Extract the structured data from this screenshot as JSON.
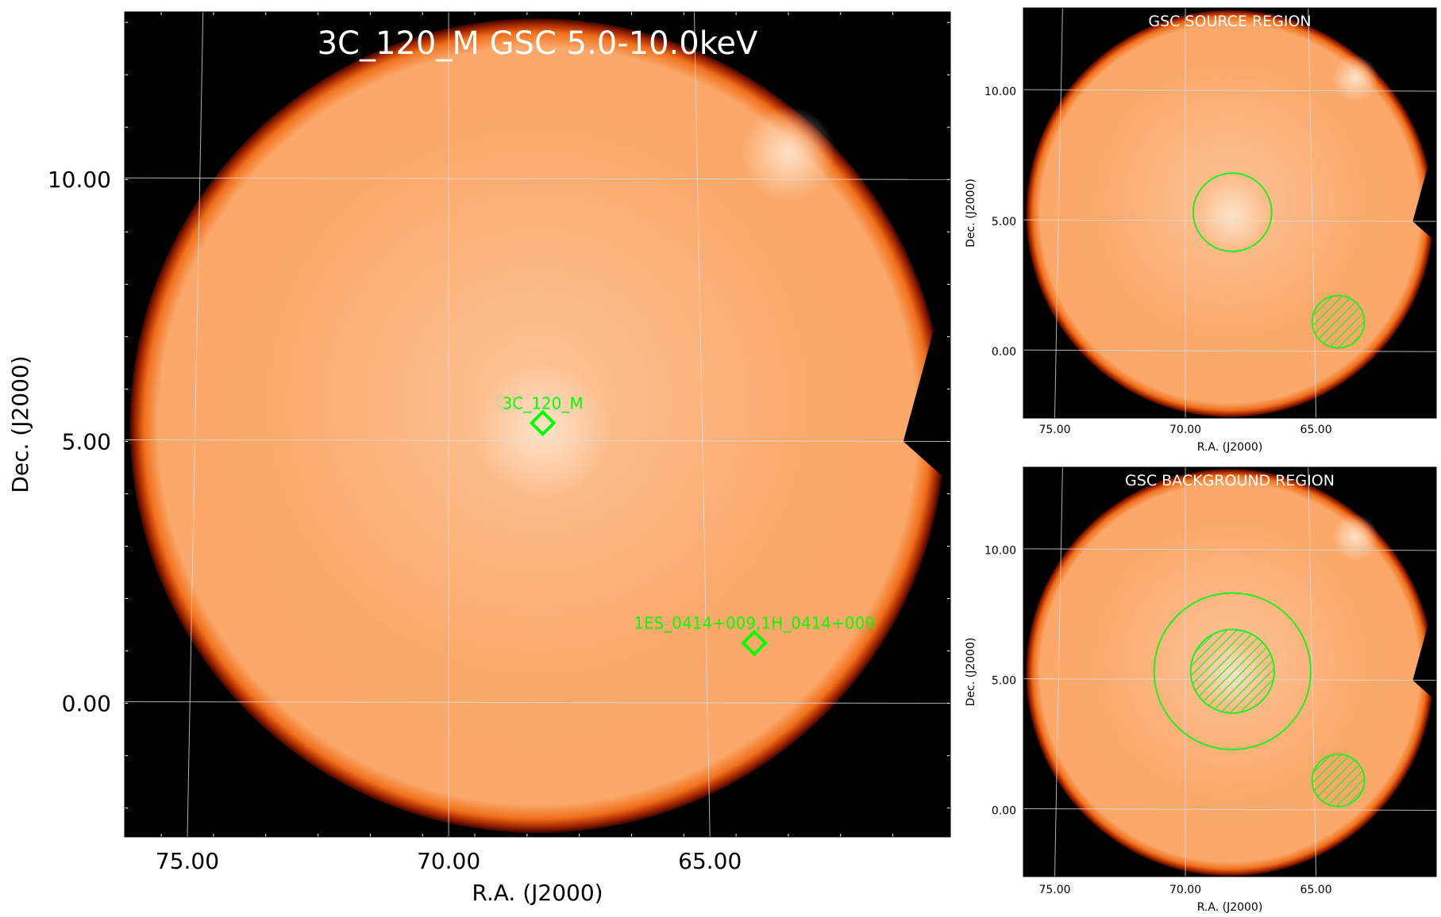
{
  "chart_data": [
    {
      "type": "heatmap",
      "panel": "main",
      "title": "3C_120_M GSC 5.0-10.0keV",
      "xlabel": "R.A. (J2000)",
      "ylabel": "Dec. (J2000)",
      "xlim": [
        76.2,
        60.4
      ],
      "ylim": [
        -2.55,
        13.2
      ],
      "x_ticks": [
        "75.00",
        "70.00",
        "65.00"
      ],
      "x_tick_values": [
        75,
        70,
        65
      ],
      "y_ticks": [
        "0.00",
        "5.00",
        "10.00"
      ],
      "y_tick_values": [
        0,
        5,
        10
      ],
      "grid": true,
      "colormap": "hot (black to orange to white)",
      "field_of_view": {
        "center_ra": 68.3,
        "center_dec": 5.3,
        "radius_deg": 7.8
      },
      "bright_spots": [
        {
          "ra": 68.2,
          "dec": 5.2
        },
        {
          "ra": 63.5,
          "dec": 10.5
        }
      ],
      "sources": [
        {
          "name": "3C_120_M",
          "ra": 68.2,
          "dec": 5.35
        },
        {
          "name": "1ES_0414+009,1H_0414+009",
          "ra": 64.15,
          "dec": 1.15
        }
      ]
    },
    {
      "type": "heatmap",
      "panel": "source-region",
      "title": "GSC SOURCE REGION",
      "xlabel": "R.A. (J2000)",
      "ylabel": "Dec. (J2000)",
      "xlim": [
        76.2,
        60.4
      ],
      "ylim": [
        -2.55,
        13.2
      ],
      "x_ticks": [
        "75.00",
        "70.00",
        "65.00"
      ],
      "x_tick_values": [
        75,
        70,
        65
      ],
      "y_ticks": [
        "0.00",
        "5.00",
        "10.00"
      ],
      "y_tick_values": [
        0,
        5,
        10
      ],
      "grid": true,
      "regions": [
        {
          "kind": "source",
          "ra": 68.2,
          "dec": 5.35,
          "radius_deg": 1.5,
          "hatched": false
        },
        {
          "kind": "excluded",
          "ra": 64.15,
          "dec": 1.15,
          "radius_deg": 1.0,
          "hatched": true
        }
      ]
    },
    {
      "type": "heatmap",
      "panel": "background-region",
      "title": "GSC BACKGROUND REGION",
      "xlabel": "R.A. (J2000)",
      "ylabel": "Dec. (J2000)",
      "xlim": [
        76.2,
        60.4
      ],
      "ylim": [
        -2.55,
        13.2
      ],
      "x_ticks": [
        "75.00",
        "70.00",
        "65.00"
      ],
      "x_tick_values": [
        75,
        70,
        65
      ],
      "y_ticks": [
        "0.00",
        "5.00",
        "10.00"
      ],
      "y_tick_values": [
        0,
        5,
        10
      ],
      "grid": true,
      "regions": [
        {
          "kind": "background-outer",
          "ra": 68.2,
          "dec": 5.35,
          "radius_deg": 3.0,
          "hatched": false
        },
        {
          "kind": "excluded",
          "ra": 68.2,
          "dec": 5.35,
          "radius_deg": 1.6,
          "hatched": true
        },
        {
          "kind": "excluded",
          "ra": 64.15,
          "dec": 1.15,
          "radius_deg": 1.0,
          "hatched": true
        }
      ]
    }
  ],
  "colors": {
    "background": "#000000",
    "field_fill": "#fbaa6e",
    "field_center": "#fdd3b0",
    "field_edge": "#6b1300",
    "grid": "#dddddd",
    "region": "#22ee22",
    "marker_label": "#00ff00"
  }
}
